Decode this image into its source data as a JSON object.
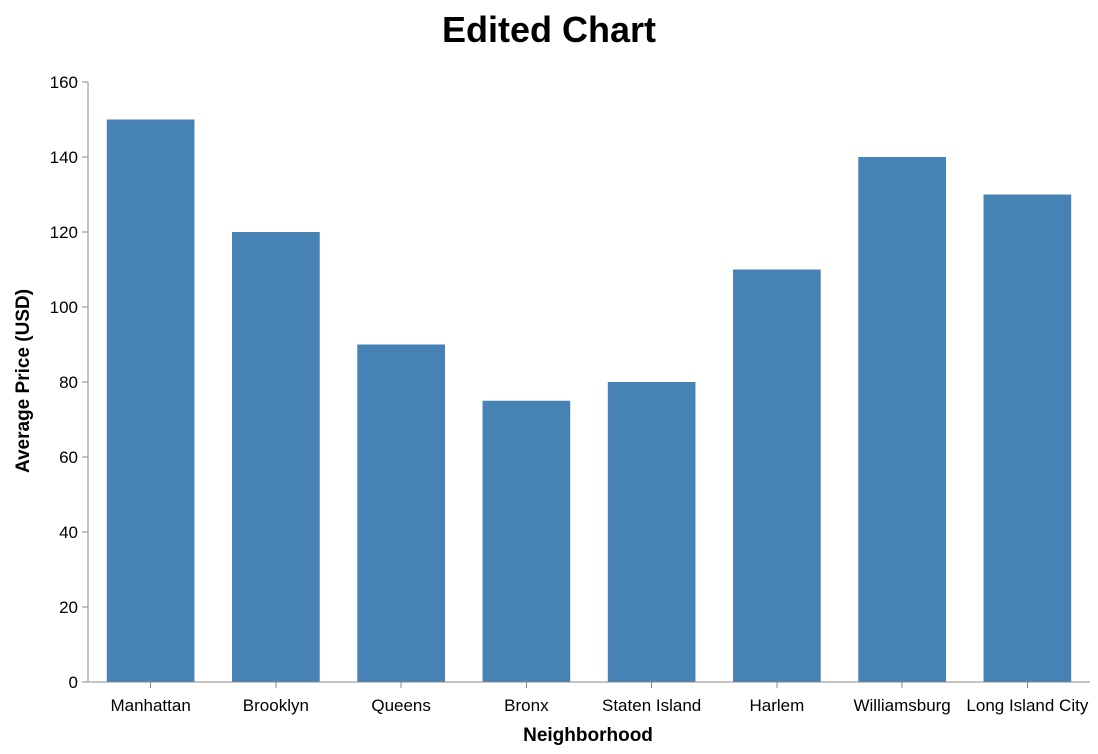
{
  "chart_data": {
    "type": "bar",
    "title": "Edited Chart",
    "xlabel": "Neighborhood",
    "ylabel": "Average Price (USD)",
    "categories": [
      "Manhattan",
      "Brooklyn",
      "Queens",
      "Bronx",
      "Staten Island",
      "Harlem",
      "Williamsburg",
      "Long Island City"
    ],
    "values": [
      150,
      120,
      90,
      75,
      80,
      110,
      140,
      130
    ],
    "ylim": [
      0,
      160
    ],
    "yticks": [
      0,
      20,
      40,
      60,
      80,
      100,
      120,
      140,
      160
    ],
    "grid": false,
    "legend": "none",
    "bar_color": "#4682b4"
  }
}
